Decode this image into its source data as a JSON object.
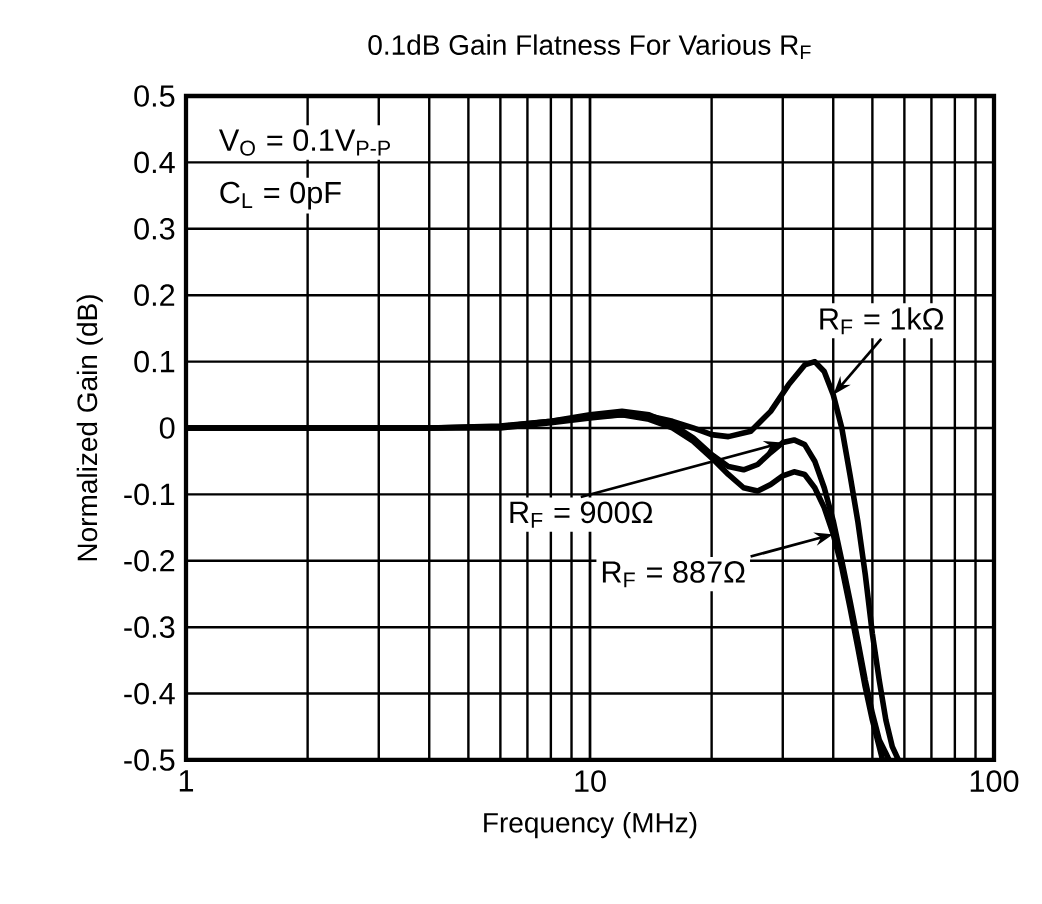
{
  "chart_data": {
    "type": "line",
    "title": "0.1dB Gain Flatness For Various R$_{F}$",
    "xlabel": "Frequency (MHz)",
    "ylabel": "Normalized Gain (dB)",
    "log": "x",
    "grid": true,
    "xlim": [
      1,
      100
    ],
    "xticks": [
      1,
      10,
      100
    ],
    "ylim": [
      -0.5,
      0.5
    ],
    "yticks": [
      -0.5,
      -0.4,
      -0.3,
      -0.2,
      -0.1,
      0,
      0.1,
      0.2,
      0.3,
      0.4,
      0.5
    ],
    "series": [
      {
        "name": "R$_{F}$ = 1kΩ",
        "color": "#000000",
        "x": [
          1,
          2,
          4,
          6,
          8,
          10,
          12,
          14,
          16,
          18,
          20,
          22,
          25,
          28,
          31,
          34,
          36,
          38,
          40,
          42,
          44,
          46,
          48,
          50,
          52,
          54,
          56,
          58
        ],
        "values": [
          0,
          0,
          0,
          0.003,
          0.01,
          0.017,
          0.02,
          0.018,
          0.01,
          0,
          -0.01,
          -0.013,
          -0.005,
          0.025,
          0.065,
          0.095,
          0.1,
          0.085,
          0.05,
          0.0,
          -0.07,
          -0.14,
          -0.22,
          -0.31,
          -0.38,
          -0.44,
          -0.48,
          -0.5
        ]
      },
      {
        "name": "R$_{F}$ = 900Ω",
        "color": "#000000",
        "x": [
          1,
          2,
          4,
          6,
          8,
          10,
          12,
          14,
          16,
          18,
          20,
          22,
          24,
          26,
          28,
          30,
          32,
          34,
          36,
          38,
          40,
          42,
          44,
          46,
          48,
          50,
          52,
          54,
          55
        ],
        "values": [
          0,
          0,
          0,
          0.002,
          0.01,
          0.02,
          0.025,
          0.02,
          0.005,
          -0.015,
          -0.04,
          -0.058,
          -0.063,
          -0.055,
          -0.037,
          -0.022,
          -0.018,
          -0.025,
          -0.05,
          -0.09,
          -0.14,
          -0.2,
          -0.26,
          -0.32,
          -0.38,
          -0.43,
          -0.47,
          -0.49,
          -0.5
        ]
      },
      {
        "name": "R$_{F}$ = 887Ω",
        "color": "#000000",
        "x": [
          1,
          2,
          4,
          6,
          8,
          10,
          12,
          14,
          16,
          18,
          20,
          22,
          24,
          26,
          28,
          30,
          32,
          34,
          36,
          38,
          40,
          42,
          44,
          46,
          48,
          50,
          52,
          53
        ],
        "values": [
          0,
          0,
          0,
          0,
          0.008,
          0.015,
          0.02,
          0.013,
          0,
          -0.02,
          -0.045,
          -0.07,
          -0.09,
          -0.095,
          -0.085,
          -0.072,
          -0.066,
          -0.07,
          -0.09,
          -0.12,
          -0.16,
          -0.21,
          -0.27,
          -0.33,
          -0.39,
          -0.44,
          -0.48,
          -0.5
        ]
      }
    ],
    "line_style": "solid",
    "annotations": [
      "V$_{O}$ = 0.1V$_{P-P}$",
      "C$_{L}$ = 0pF"
    ]
  }
}
